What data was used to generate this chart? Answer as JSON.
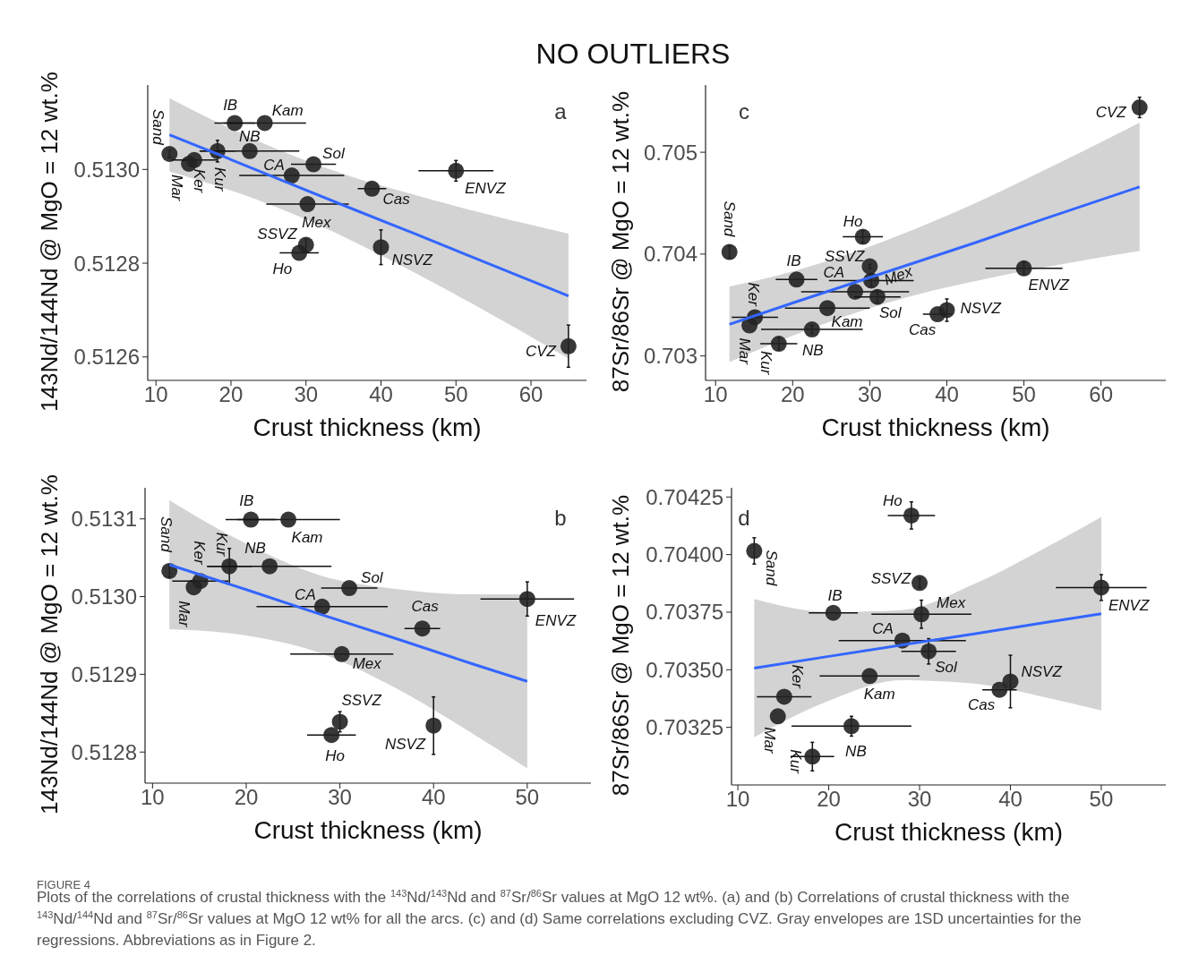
{
  "chart_data": [
    {
      "type": "scatter",
      "title": "NO OUTLIERS",
      "xlabel": "Crust thickness (km)",
      "ylabel": "143Nd/144Nd @ MgO = 12 wt.%",
      "xlim": [
        8.9,
        67.4
      ],
      "xticks": [
        10,
        20,
        30,
        40,
        50,
        60
      ],
      "ylim": [
        0.51255,
        0.51318
      ],
      "yticks": [
        0.5126,
        0.5128,
        {
          "value": 0.513,
          "label": "0.5130"
        }
      ],
      "series": [
        {
          "color": "#222222",
          "x": [
            11.8,
            14.4,
            15.1,
            18.2,
            20.5,
            22.5,
            24.5,
            28.1,
            31.0,
            30.2,
            38.8,
            30.0,
            29.1,
            40.0,
            50.0,
            65.0
          ],
          "values": [
            0.513033,
            0.513012,
            0.51302,
            0.513039,
            0.513099,
            0.513039,
            0.513099,
            0.512987,
            0.513011,
            0.512926,
            0.512959,
            0.512839,
            0.512822,
            0.512834,
            0.512997,
            0.512623
          ],
          "errors": [
            8e-06,
            null,
            null,
            2.3e-05,
            null,
            null,
            null,
            null,
            null,
            null,
            null,
            1.3e-05,
            null,
            3.7e-05,
            2.2e-05,
            4.5e-05
          ],
          "xerrors": [
            null,
            null,
            3.0,
            2.4,
            2.7,
            6.6,
            5.5,
            7.0,
            3.0,
            5.5,
            1.9,
            null,
            2.6,
            null,
            5.0,
            null
          ]
        },
        {
          "type": "line",
          "color": "#3366ff",
          "x": [
            11.8,
            20,
            28,
            36,
            44,
            52,
            65
          ],
          "values": [
            0.513074,
            0.513021,
            0.512969,
            0.512917,
            0.512866,
            0.512814,
            0.51273
          ],
          "lower": [
            0.512996,
            0.512955,
            0.512907,
            0.512849,
            0.512784,
            0.512715,
            0.512597
          ],
          "upper": [
            0.513152,
            0.513087,
            0.513031,
            0.512985,
            0.512948,
            0.512913,
            0.512863
          ]
        }
      ],
      "annotations": [
        "a",
        {
          "text": "Sand",
          "x": 11.8,
          "y": 0.513033
        },
        {
          "text": "Mar",
          "x": 14.4,
          "y": 0.513012
        },
        {
          "text": "Ker",
          "x": 15.1,
          "y": 0.51302
        },
        {
          "text": "Kur",
          "x": 18.2,
          "y": 0.513039
        },
        {
          "text": "IB",
          "x": 20.5,
          "y": 0.513099
        },
        {
          "text": "NB",
          "x": 22.5,
          "y": 0.513039
        },
        {
          "text": "Kam",
          "x": 24.5,
          "y": 0.513099
        },
        {
          "text": "CA",
          "x": 28.1,
          "y": 0.512987
        },
        {
          "text": "Sol",
          "x": 31.0,
          "y": 0.513011
        },
        {
          "text": "Mex",
          "x": 30.2,
          "y": 0.512926
        },
        {
          "text": "Cas",
          "x": 38.8,
          "y": 0.512959
        },
        {
          "text": "SSVZ",
          "x": 30.0,
          "y": 0.512839
        },
        {
          "text": "Ho",
          "x": 29.1,
          "y": 0.512822
        },
        {
          "text": "NSVZ",
          "x": 40.0,
          "y": 0.512834
        },
        {
          "text": "ENVZ",
          "x": 50.0,
          "y": 0.512997
        },
        {
          "text": "CVZ",
          "x": 65.0,
          "y": 0.512623
        }
      ]
    },
    {
      "type": "scatter",
      "xlabel": "Crust thickness (km)",
      "ylabel": "143Nd/144Nd @ MgO = 12 wt.%",
      "xlim": [
        9.2,
        56.8
      ],
      "xticks": [
        10,
        20,
        30,
        40,
        50
      ],
      "ylim": [
        0.51276,
        0.51314
      ],
      "yticks": [
        0.5128,
        0.5129,
        {
          "value": 0.513,
          "label": "0.5130"
        },
        0.5131
      ],
      "series": [
        {
          "color": "#222222",
          "x": [
            11.8,
            14.4,
            15.1,
            18.2,
            20.5,
            22.5,
            24.5,
            28.1,
            31.0,
            30.2,
            38.8,
            30.0,
            29.1,
            40.0,
            50.0
          ],
          "values": [
            0.513033,
            0.513012,
            0.51302,
            0.513039,
            0.513099,
            0.513039,
            0.513099,
            0.512987,
            0.513011,
            0.512926,
            0.512959,
            0.512839,
            0.512822,
            0.512834,
            0.512997
          ],
          "errors": [
            8e-06,
            null,
            null,
            2.3e-05,
            null,
            null,
            null,
            null,
            null,
            null,
            null,
            1.3e-05,
            null,
            3.7e-05,
            2.2e-05
          ],
          "xerrors": [
            null,
            null,
            3.0,
            2.4,
            2.7,
            6.6,
            5.5,
            7.0,
            3.0,
            5.5,
            1.9,
            null,
            2.6,
            null,
            5.0
          ]
        },
        {
          "type": "line",
          "color": "#3366ff",
          "x": [
            11.8,
            20,
            28,
            36,
            44,
            50
          ],
          "values": [
            0.513041,
            0.513009,
            0.512977,
            0.512946,
            0.512914,
            0.512891
          ],
          "lower": [
            0.512958,
            0.51295,
            0.512927,
            0.512882,
            0.512825,
            0.512779
          ],
          "upper": [
            0.513124,
            0.513068,
            0.513027,
            0.51301,
            0.513003,
            0.513003
          ]
        }
      ],
      "annotations": [
        "b",
        {
          "text": "Sand",
          "x": 11.8,
          "y": 0.513033
        },
        {
          "text": "Mar",
          "x": 14.4,
          "y": 0.513012
        },
        {
          "text": "Ker",
          "x": 15.1,
          "y": 0.51302
        },
        {
          "text": "Kur",
          "x": 18.2,
          "y": 0.513039
        },
        {
          "text": "IB",
          "x": 20.5,
          "y": 0.513099
        },
        {
          "text": "NB",
          "x": 22.5,
          "y": 0.513039
        },
        {
          "text": "Kam",
          "x": 24.5,
          "y": 0.513099
        },
        {
          "text": "CA",
          "x": 28.1,
          "y": 0.512987
        },
        {
          "text": "Sol",
          "x": 31.0,
          "y": 0.513011
        },
        {
          "text": "Mex",
          "x": 30.2,
          "y": 0.512926
        },
        {
          "text": "Cas",
          "x": 38.8,
          "y": 0.512959
        },
        {
          "text": "SSVZ",
          "x": 30.0,
          "y": 0.512839
        },
        {
          "text": "Ho",
          "x": 29.1,
          "y": 0.512822
        },
        {
          "text": "NSVZ",
          "x": 40.0,
          "y": 0.512834
        },
        {
          "text": "ENVZ",
          "x": 50.0,
          "y": 0.512997
        }
      ]
    },
    {
      "type": "scatter",
      "xlabel": "Crust thickness (km)",
      "ylabel": "87Sr/86Sr @ MgO = 12 wt.%",
      "xlim": [
        8.7,
        68.4
      ],
      "xticks": [
        10,
        20,
        30,
        40,
        50,
        60
      ],
      "ylim": [
        0.70276,
        0.70566
      ],
      "yticks": [
        0.703,
        0.704,
        0.705
      ],
      "series": [
        {
          "color": "#222222",
          "x": [
            11.8,
            14.4,
            15.1,
            18.2,
            20.5,
            22.5,
            24.5,
            28.1,
            31.0,
            30.2,
            38.8,
            30.0,
            29.1,
            40.0,
            50.0,
            65.0
          ],
          "values": [
            0.70402,
            0.7033,
            0.70338,
            0.70312,
            0.70375,
            0.70326,
            0.70347,
            0.70363,
            0.70358,
            0.70374,
            0.70341,
            0.70388,
            0.70417,
            0.70345,
            0.70386,
            0.70544
          ],
          "errors": [
            6e-05,
            null,
            null,
            6e-05,
            null,
            4e-05,
            null,
            null,
            6e-05,
            6e-05,
            null,
            2e-05,
            6e-05,
            0.00011,
            6e-05,
            0.0001
          ],
          "xerrors": [
            null,
            null,
            3.0,
            2.4,
            2.7,
            6.6,
            5.5,
            7.0,
            3.0,
            5.5,
            1.9,
            null,
            2.6,
            null,
            5.0,
            null
          ]
        },
        {
          "type": "line",
          "color": "#3366ff",
          "x": [
            11.8,
            20,
            28,
            36,
            44,
            52,
            65
          ],
          "values": [
            0.70331,
            0.70352,
            0.70372,
            0.70392,
            0.70412,
            0.70433,
            0.70466
          ],
          "lower": [
            0.70294,
            0.7032,
            0.70342,
            0.7036,
            0.70374,
            0.70386,
            0.70403
          ],
          "upper": [
            0.70368,
            0.70383,
            0.70402,
            0.70425,
            0.70451,
            0.7048,
            0.70529
          ]
        }
      ],
      "annotations": [
        "c",
        {
          "text": "Sand",
          "x": 11.8,
          "y": 0.70402
        },
        {
          "text": "Mar",
          "x": 14.4,
          "y": 0.7033
        },
        {
          "text": "Ker",
          "x": 15.1,
          "y": 0.70338
        },
        {
          "text": "Kur",
          "x": 18.2,
          "y": 0.70312
        },
        {
          "text": "IB",
          "x": 20.5,
          "y": 0.70375
        },
        {
          "text": "NB",
          "x": 22.5,
          "y": 0.70326
        },
        {
          "text": "Kam",
          "x": 24.5,
          "y": 0.70347
        },
        {
          "text": "CA",
          "x": 28.1,
          "y": 0.70363
        },
        {
          "text": "Sol",
          "x": 31.0,
          "y": 0.70358
        },
        {
          "text": "Mex",
          "x": 30.2,
          "y": 0.70374
        },
        {
          "text": "Cas",
          "x": 38.8,
          "y": 0.70341
        },
        {
          "text": "SSVZ",
          "x": 30.0,
          "y": 0.70388
        },
        {
          "text": "Ho",
          "x": 29.1,
          "y": 0.70417
        },
        {
          "text": "NSVZ",
          "x": 40.0,
          "y": 0.70345
        },
        {
          "text": "ENVZ",
          "x": 50.0,
          "y": 0.70386
        },
        {
          "text": "CVZ",
          "x": 65.0,
          "y": 0.70544
        }
      ]
    },
    {
      "type": "scatter",
      "xlabel": "Crust thickness (km)",
      "ylabel": "87Sr/86Sr @ MgO = 12 wt.%",
      "xlim": [
        9.3,
        57.1
      ],
      "xticks": [
        10,
        20,
        30,
        40,
        50
      ],
      "ylim": [
        0.703,
        0.70429
      ],
      "yticks": [
        0.70325,
        {
          "value": 0.7035,
          "label": "0.70350"
        },
        0.70375,
        {
          "value": 0.704,
          "label": "0.70400"
        },
        0.70425
      ],
      "series": [
        {
          "color": "#222222",
          "x": [
            11.8,
            14.4,
            15.1,
            18.2,
            20.5,
            22.5,
            24.5,
            28.1,
            31.0,
            30.2,
            38.8,
            30.0,
            29.1,
            40.0,
            50.0
          ],
          "values": [
            0.704016,
            0.703298,
            0.703383,
            0.703123,
            0.703747,
            0.703255,
            0.703473,
            0.703627,
            0.70358,
            0.703741,
            0.703413,
            0.703877,
            0.70417,
            0.703449,
            0.703857
          ],
          "errors": [
            5.7e-05,
            null,
            null,
            6.2e-05,
            null,
            4.3e-05,
            null,
            null,
            5.5e-05,
            6.1e-05,
            null,
            2e-05,
            5.9e-05,
            0.000114,
            5.6e-05
          ],
          "xerrors": [
            null,
            null,
            3.0,
            2.4,
            2.7,
            6.6,
            5.5,
            7.0,
            3.0,
            5.5,
            1.9,
            null,
            2.6,
            null,
            5.0
          ]
        },
        {
          "type": "line",
          "color": "#3366ff",
          "x": [
            11.8,
            20,
            28,
            36,
            44,
            50
          ],
          "values": [
            0.703507,
            0.703558,
            0.703607,
            0.703656,
            0.703706,
            0.703743
          ],
          "lower": [
            0.703207,
            0.703365,
            0.703455,
            0.70344,
            0.703379,
            0.703323
          ],
          "upper": [
            0.703807,
            0.703751,
            0.703759,
            0.703872,
            0.704033,
            0.704163
          ]
        }
      ],
      "annotations": [
        "d",
        {
          "text": "Sand",
          "x": 11.8,
          "y": 0.704016
        },
        {
          "text": "Mar",
          "x": 14.4,
          "y": 0.703298
        },
        {
          "text": "Ker",
          "x": 15.1,
          "y": 0.703383
        },
        {
          "text": "Kur",
          "x": 18.2,
          "y": 0.703123
        },
        {
          "text": "IB",
          "x": 20.5,
          "y": 0.703747
        },
        {
          "text": "NB",
          "x": 22.5,
          "y": 0.703255
        },
        {
          "text": "Kam",
          "x": 24.5,
          "y": 0.703473
        },
        {
          "text": "CA",
          "x": 28.1,
          "y": 0.703627
        },
        {
          "text": "Sol",
          "x": 31.0,
          "y": 0.70358
        },
        {
          "text": "Mex",
          "x": 30.2,
          "y": 0.703741
        },
        {
          "text": "Cas",
          "x": 38.8,
          "y": 0.703413
        },
        {
          "text": "SSVZ",
          "x": 30.0,
          "y": 0.703877
        },
        {
          "text": "Ho",
          "x": 29.1,
          "y": 0.70417
        },
        {
          "text": "NSVZ",
          "x": 40.0,
          "y": 0.703449
        },
        {
          "text": "ENVZ",
          "x": 50.0,
          "y": 0.703857
        },
        "FIGURE 4",
        "Plots of the correlations of crustal thickness with the $^{143}$Nd/$^{143}$Nd and $^{87}$Sr/$^{86}$Sr values at MgO 12 wt%. (a) and (b) Correlations of crustal thickness with the $^{143}$Nd/$^{144}$Nd and $^{87}$Sr/$^{86}$Sr values at MgO 12 wt% for all the arcs. (c) and (d) Same correlations excluding CVZ. Gray envelopes are 1SD uncertainties for the regressions. Abbreviations as in Figure 2."
      ]
    }
  ]
}
